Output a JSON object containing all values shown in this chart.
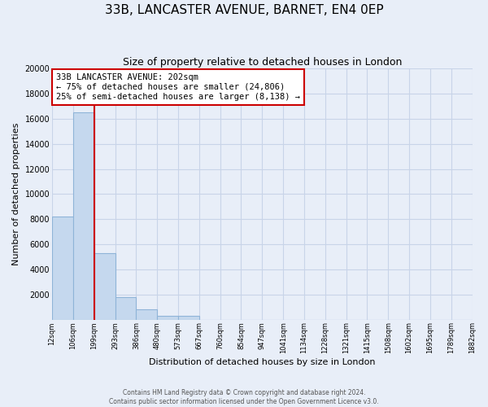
{
  "title": "33B, LANCASTER AVENUE, BARNET, EN4 0EP",
  "subtitle": "Size of property relative to detached houses in London",
  "xlabel": "Distribution of detached houses by size in London",
  "ylabel": "Number of detached properties",
  "bar_values": [
    8200,
    16500,
    5300,
    1800,
    800,
    300,
    300,
    0,
    0,
    0,
    0,
    0,
    0,
    0,
    0,
    0,
    0,
    0,
    0,
    0
  ],
  "bar_labels": [
    "12sqm",
    "106sqm",
    "199sqm",
    "293sqm",
    "386sqm",
    "480sqm",
    "573sqm",
    "667sqm",
    "760sqm",
    "854sqm",
    "947sqm",
    "1041sqm",
    "1134sqm",
    "1228sqm",
    "1321sqm",
    "1415sqm",
    "1508sqm",
    "1602sqm",
    "1695sqm",
    "1789sqm",
    "1882sqm"
  ],
  "bar_color": "#c5d8ee",
  "bar_edge_color": "#8fb4d8",
  "vline_color": "#cc0000",
  "annotation_title": "33B LANCASTER AVENUE: 202sqm",
  "annotation_line1": "← 75% of detached houses are smaller (24,806)",
  "annotation_line2": "25% of semi-detached houses are larger (8,138) →",
  "annotation_box_facecolor": "#ffffff",
  "annotation_box_edgecolor": "#cc0000",
  "ylim": [
    0,
    20000
  ],
  "yticks": [
    0,
    2000,
    4000,
    6000,
    8000,
    10000,
    12000,
    14000,
    16000,
    18000,
    20000
  ],
  "footer_line1": "Contains HM Land Registry data © Crown copyright and database right 2024.",
  "footer_line2": "Contains public sector information licensed under the Open Government Licence v3.0.",
  "background_color": "#e8eef8",
  "grid_color": "#c8d4e8",
  "title_fontsize": 11,
  "subtitle_fontsize": 9,
  "xlabel_fontsize": 8,
  "ylabel_fontsize": 8
}
